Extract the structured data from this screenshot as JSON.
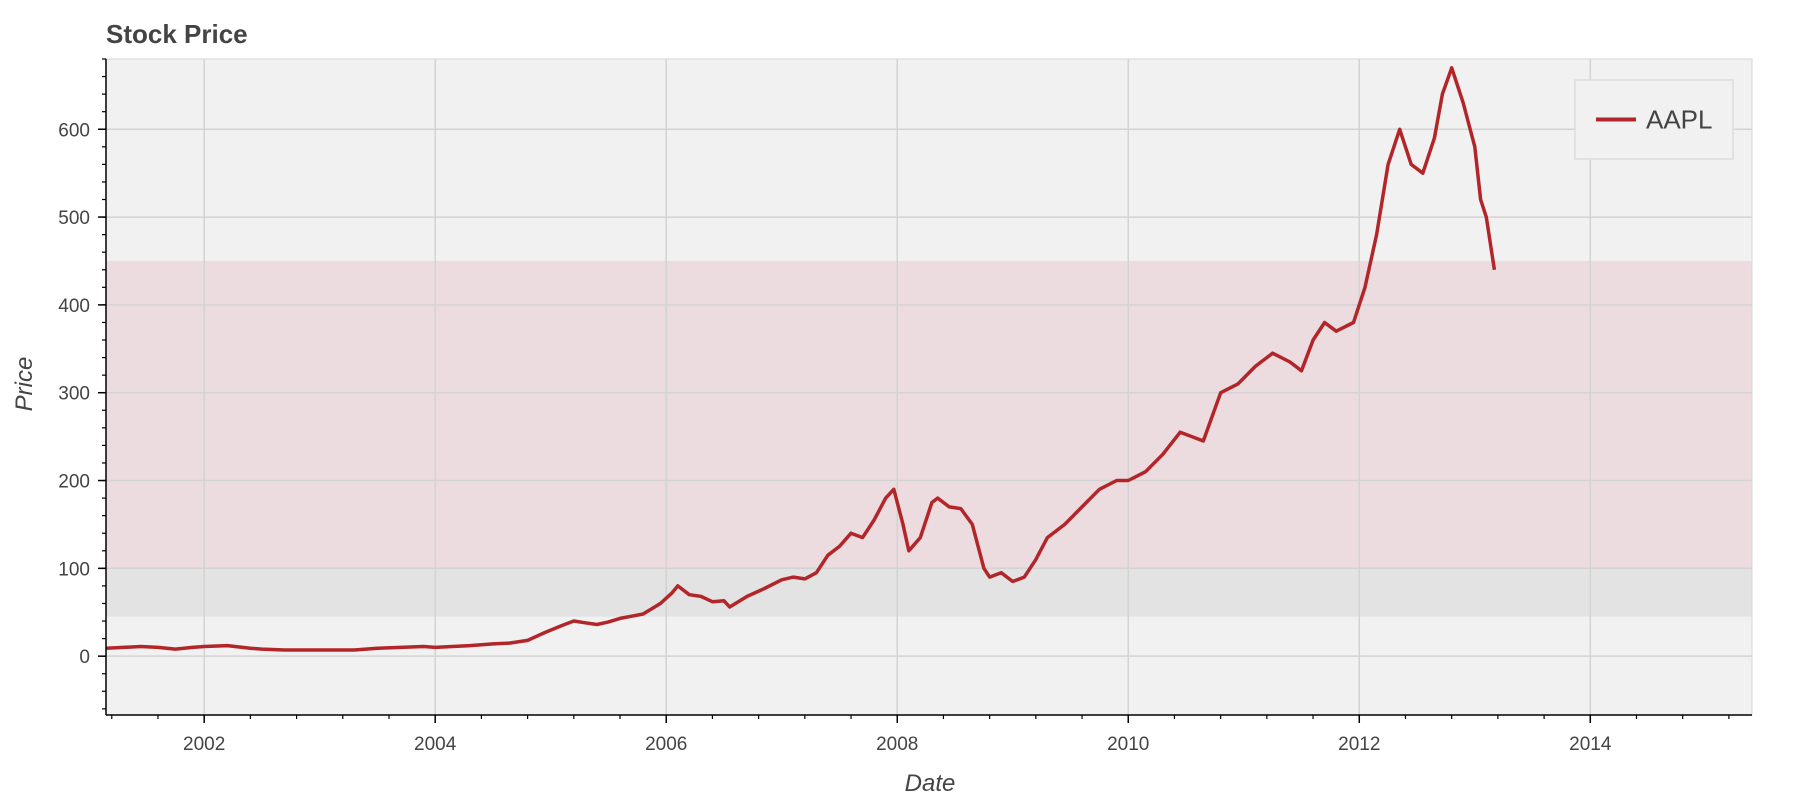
{
  "chart_data": {
    "type": "line",
    "title": "Stock Price",
    "xlabel": "Date",
    "ylabel": "Price",
    "xlim": [
      2001.15,
      2015.4
    ],
    "ylim": [
      -67,
      680
    ],
    "x_ticks": [
      2002,
      2004,
      2006,
      2008,
      2010,
      2012,
      2014
    ],
    "x_tick_labels": [
      "2002",
      "2004",
      "2006",
      "2008",
      "2010",
      "2012",
      "2014"
    ],
    "y_ticks": [
      0,
      100,
      200,
      300,
      400,
      500,
      600
    ],
    "y_tick_labels": [
      "0",
      "100",
      "200",
      "300",
      "400",
      "500",
      "600"
    ],
    "y_minor_step": 20,
    "grid": true,
    "legend_position": "top-right",
    "background_color": "#f1f1f1",
    "bands": [
      {
        "y_from": 45,
        "y_to": 100,
        "color": "#e3e3e3"
      },
      {
        "y_from": 100,
        "y_to": 450,
        "color": "#ecdcdf"
      }
    ],
    "series": [
      {
        "name": "AAPL",
        "color": "#b2262a",
        "x": [
          2001.15,
          2001.3,
          2001.45,
          2001.6,
          2001.75,
          2001.9,
          2002.0,
          2002.2,
          2002.4,
          2002.5,
          2002.7,
          2002.9,
          2003.1,
          2003.3,
          2003.5,
          2003.7,
          2003.9,
          2004.0,
          2004.3,
          2004.5,
          2004.65,
          2004.8,
          2004.95,
          2005.1,
          2005.2,
          2005.3,
          2005.4,
          2005.5,
          2005.6,
          2005.8,
          2005.95,
          2006.05,
          2006.1,
          2006.2,
          2006.3,
          2006.4,
          2006.5,
          2006.55,
          2006.7,
          2006.85,
          2007.0,
          2007.1,
          2007.2,
          2007.3,
          2007.4,
          2007.5,
          2007.6,
          2007.7,
          2007.8,
          2007.9,
          2007.97,
          2008.05,
          2008.1,
          2008.2,
          2008.3,
          2008.35,
          2008.45,
          2008.55,
          2008.65,
          2008.75,
          2008.8,
          2008.9,
          2009.0,
          2009.1,
          2009.2,
          2009.3,
          2009.45,
          2009.6,
          2009.75,
          2009.9,
          2010.0,
          2010.15,
          2010.3,
          2010.45,
          2010.55,
          2010.65,
          2010.8,
          2010.95,
          2011.1,
          2011.25,
          2011.4,
          2011.5,
          2011.6,
          2011.7,
          2011.8,
          2011.95,
          2012.05,
          2012.15,
          2012.25,
          2012.35,
          2012.45,
          2012.55,
          2012.65,
          2012.72,
          2012.8,
          2012.9,
          2013.0,
          2013.05,
          2013.1,
          2013.17
        ],
        "y": [
          9,
          10,
          11,
          10,
          8,
          10,
          11,
          12,
          9,
          8,
          7,
          7,
          7,
          7,
          9,
          10,
          11,
          10,
          12,
          14,
          15,
          18,
          27,
          35,
          40,
          38,
          36,
          39,
          43,
          48,
          60,
          72,
          80,
          70,
          68,
          62,
          63,
          56,
          68,
          77,
          87,
          90,
          88,
          95,
          115,
          125,
          140,
          135,
          155,
          180,
          190,
          150,
          120,
          135,
          175,
          180,
          170,
          168,
          150,
          100,
          90,
          95,
          85,
          90,
          110,
          135,
          150,
          170,
          190,
          200,
          200,
          210,
          230,
          255,
          250,
          245,
          300,
          310,
          330,
          345,
          335,
          325,
          360,
          380,
          370,
          380,
          420,
          480,
          560,
          600,
          560,
          550,
          590,
          640,
          670,
          630,
          580,
          520,
          500,
          440
        ]
      }
    ]
  }
}
